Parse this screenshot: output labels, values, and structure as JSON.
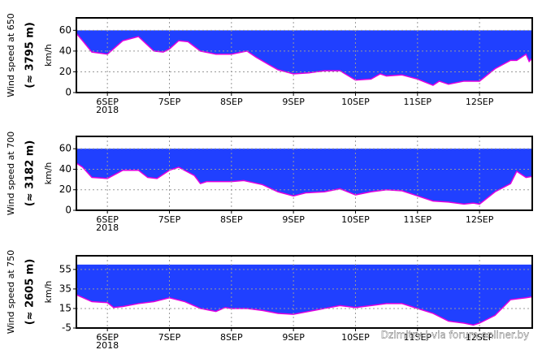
{
  "chart_data": [
    {
      "type": "area",
      "ylabel": "Wind speed at 650",
      "ylabel2": "(≈ 3795 m)",
      "yunit": "km/h",
      "x": [
        5.5,
        5.6,
        5.75,
        6.0,
        6.25,
        6.5,
        6.75,
        6.9,
        7.0,
        7.15,
        7.3,
        7.5,
        7.75,
        8.0,
        8.25,
        8.4,
        8.6,
        8.75,
        9.0,
        9.25,
        9.5,
        9.75,
        10.0,
        10.25,
        10.4,
        10.5,
        10.75,
        11.0,
        11.25,
        11.35,
        11.5,
        11.75,
        12.0,
        12.25,
        12.5,
        12.6,
        12.75,
        12.8,
        12.85
      ],
      "series": [
        {
          "color": "#2040ff",
          "line_color": "#e000e0",
          "values": [
            57,
            50,
            39,
            37,
            50,
            54,
            40,
            39,
            42,
            50,
            49,
            40,
            37,
            37,
            40,
            34,
            27,
            22,
            18,
            19,
            21,
            21,
            12,
            13,
            18,
            16,
            17,
            13,
            7,
            11,
            8,
            11,
            11,
            23,
            31,
            31,
            37,
            30,
            33
          ]
        }
      ],
      "fill_to": 60,
      "xlim": [
        5.5,
        12.85
      ],
      "xticks": [
        {
          "value": 6,
          "label": "6SEP"
        },
        {
          "value": 7,
          "label": "7SEP"
        },
        {
          "value": 8,
          "label": "8SEP"
        },
        {
          "value": 9,
          "label": "9SEP"
        },
        {
          "value": 10,
          "label": "10SEP"
        },
        {
          "value": 11,
          "label": "11SEP"
        },
        {
          "value": 12,
          "label": "12SEP"
        }
      ],
      "year_label": "2018",
      "ylim": [
        0,
        72
      ],
      "yticks": [
        0,
        20,
        40,
        60
      ],
      "grid": true
    },
    {
      "type": "area",
      "ylabel": "Wind speed at 700",
      "ylabel2": "(≈ 3182 m)",
      "yunit": "km/h",
      "x": [
        5.5,
        5.6,
        5.75,
        6.0,
        6.25,
        6.5,
        6.65,
        6.8,
        7.0,
        7.15,
        7.4,
        7.5,
        7.6,
        8.0,
        8.2,
        8.5,
        8.75,
        9.0,
        9.2,
        9.5,
        9.75,
        10.0,
        10.25,
        10.5,
        10.75,
        11.0,
        11.25,
        11.5,
        11.75,
        11.9,
        12.0,
        12.25,
        12.5,
        12.6,
        12.75,
        12.85
      ],
      "series": [
        {
          "color": "#2040ff",
          "line_color": "#e000e0",
          "values": [
            46,
            42,
            32,
            31,
            39,
            39,
            32,
            31,
            39,
            42,
            34,
            26,
            28,
            28,
            29,
            25,
            18,
            14,
            17,
            18,
            21,
            15,
            18,
            20,
            19,
            14,
            9,
            8,
            6,
            7,
            6,
            18,
            26,
            38,
            32,
            33
          ]
        }
      ],
      "fill_to": 60,
      "xlim": [
        5.5,
        12.85
      ],
      "xticks": [
        {
          "value": 6,
          "label": "6SEP"
        },
        {
          "value": 7,
          "label": "7SEP"
        },
        {
          "value": 8,
          "label": "8SEP"
        },
        {
          "value": 9,
          "label": "9SEP"
        },
        {
          "value": 10,
          "label": "10SEP"
        },
        {
          "value": 11,
          "label": "11SEP"
        },
        {
          "value": 12,
          "label": "12SEP"
        }
      ],
      "year_label": "2018",
      "ylim": [
        0,
        72
      ],
      "yticks": [
        0,
        20,
        40,
        60
      ],
      "grid": true
    },
    {
      "type": "area",
      "ylabel": "Wind speed at 750",
      "ylabel2": "(≈ 2605 m)",
      "yunit": "km/h",
      "x": [
        5.5,
        5.75,
        6.0,
        6.1,
        6.25,
        6.5,
        6.75,
        7.0,
        7.25,
        7.5,
        7.75,
        7.9,
        8.0,
        8.25,
        8.5,
        8.75,
        9.0,
        9.25,
        9.5,
        9.75,
        10.0,
        10.25,
        10.5,
        10.75,
        11.0,
        11.25,
        11.5,
        11.75,
        11.9,
        12.0,
        12.25,
        12.5,
        12.75,
        12.85
      ],
      "series": [
        {
          "color": "#2040ff",
          "line_color": "#e000e0",
          "values": [
            29,
            22,
            21,
            16,
            17,
            20,
            22,
            26,
            22,
            15,
            12,
            16,
            15,
            15,
            13,
            10,
            9,
            12,
            15,
            18,
            16,
            18,
            20,
            20,
            15,
            10,
            2,
            0,
            -2,
            0,
            8,
            24,
            26,
            27
          ]
        }
      ],
      "fill_to": 60,
      "xlim": [
        5.5,
        12.85
      ],
      "xticks": [
        {
          "value": 6,
          "label": "6SEP"
        },
        {
          "value": 7,
          "label": "7SEP"
        },
        {
          "value": 8,
          "label": "8SEP"
        },
        {
          "value": 9,
          "label": "9SEP"
        },
        {
          "value": 10,
          "label": "10SEP"
        },
        {
          "value": 11,
          "label": "11SEP"
        },
        {
          "value": 12,
          "label": "12SEP"
        }
      ],
      "year_label": "2018",
      "ylim": [
        -5,
        69
      ],
      "yticks": [
        -5,
        15,
        35,
        55
      ],
      "grid": true
    }
  ],
  "watermark": "Dzimitry | via forum.onliner.by"
}
